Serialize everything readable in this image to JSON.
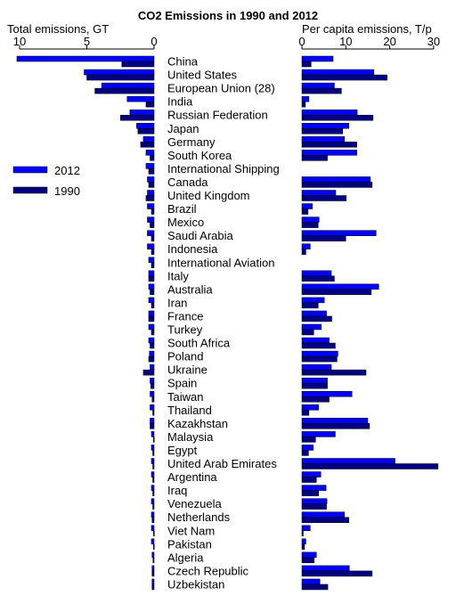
{
  "chart_data": {
    "type": "bar",
    "title": "CO2 Emissions in 1990 and 2012",
    "left_panel": {
      "axis_label": "Total emissions, GT",
      "xlim": [
        10,
        0
      ],
      "ticks": [
        10,
        5,
        0
      ]
    },
    "right_panel": {
      "axis_label": "Per capita emissions, T/p",
      "xlim": [
        0,
        30
      ],
      "ticks": [
        0,
        10,
        20,
        30
      ]
    },
    "legend": {
      "position": "left-middle",
      "entries": [
        {
          "label": "2012",
          "color": "#0000ff"
        },
        {
          "label": "1990",
          "color": "#000080"
        }
      ]
    },
    "categories": [
      "China",
      "United States",
      "European Union (28)",
      "India",
      "Russian Federation",
      "Japan",
      "Germany",
      "South Korea",
      "International Shipping",
      "Canada",
      "United Kingdom",
      "Brazil",
      "Mexico",
      "Saudi Arabia",
      "Indonesia",
      "International Aviation",
      "Italy",
      "Australia",
      "Iran",
      "France",
      "Turkey",
      "South Africa",
      "Poland",
      "Ukraine",
      "Spain",
      "Taiwan",
      "Thailand",
      "Kazakhstan",
      "Malaysia",
      "Egypt",
      "United Arab Emirates",
      "Argentina",
      "Iraq",
      "Venezuela",
      "Netherlands",
      "Viet Nam",
      "Pakistan",
      "Algeria",
      "Czech Republic",
      "Uzbekistan"
    ],
    "series": [
      {
        "name": "2012",
        "color": "#0000ff",
        "total": [
          10.2,
          5.2,
          3.9,
          2.0,
          1.8,
          1.3,
          0.8,
          0.6,
          0.6,
          0.5,
          0.5,
          0.5,
          0.5,
          0.5,
          0.5,
          0.4,
          0.4,
          0.4,
          0.4,
          0.4,
          0.4,
          0.4,
          0.35,
          0.3,
          0.3,
          0.3,
          0.3,
          0.3,
          0.2,
          0.2,
          0.2,
          0.2,
          0.2,
          0.2,
          0.2,
          0.2,
          0.2,
          0.15,
          0.15,
          0.15
        ],
        "per_capita": [
          7.1,
          16.4,
          7.4,
          1.6,
          12.6,
          10.7,
          9.7,
          12.5,
          null,
          15.6,
          7.7,
          2.4,
          3.9,
          16.9,
          1.9,
          null,
          6.7,
          17.5,
          5.1,
          5.6,
          4.4,
          6.2,
          8.2,
          6.7,
          5.8,
          11.4,
          3.8,
          15.0,
          7.6,
          2.6,
          21.2,
          4.3,
          5.5,
          5.7,
          9.7,
          1.9,
          0.9,
          3.3,
          10.8,
          4.1
        ]
      },
      {
        "name": "1990",
        "color": "#000080",
        "total": [
          2.4,
          5.0,
          4.4,
          0.6,
          2.5,
          1.2,
          1.0,
          0.3,
          0.4,
          0.4,
          0.6,
          0.2,
          0.3,
          0.2,
          0.2,
          0.2,
          0.4,
          0.3,
          0.2,
          0.4,
          0.2,
          0.3,
          0.4,
          0.8,
          0.25,
          0.15,
          0.1,
          0.3,
          0.05,
          0.1,
          0.1,
          0.1,
          0.1,
          0.1,
          0.15,
          0.05,
          0.05,
          0.08,
          0.15,
          0.15
        ],
        "per_capita": [
          2.1,
          19.4,
          9.0,
          0.8,
          16.2,
          9.3,
          12.5,
          5.8,
          null,
          16.0,
          10.1,
          1.4,
          3.7,
          10.0,
          0.9,
          null,
          7.4,
          15.8,
          3.7,
          6.8,
          2.7,
          7.6,
          8.0,
          14.6,
          5.8,
          6.2,
          1.6,
          15.4,
          3.1,
          1.5,
          31.0,
          3.3,
          3.8,
          5.6,
          10.7,
          0.3,
          0.6,
          2.8,
          16.0,
          5.9
        ]
      }
    ]
  }
}
